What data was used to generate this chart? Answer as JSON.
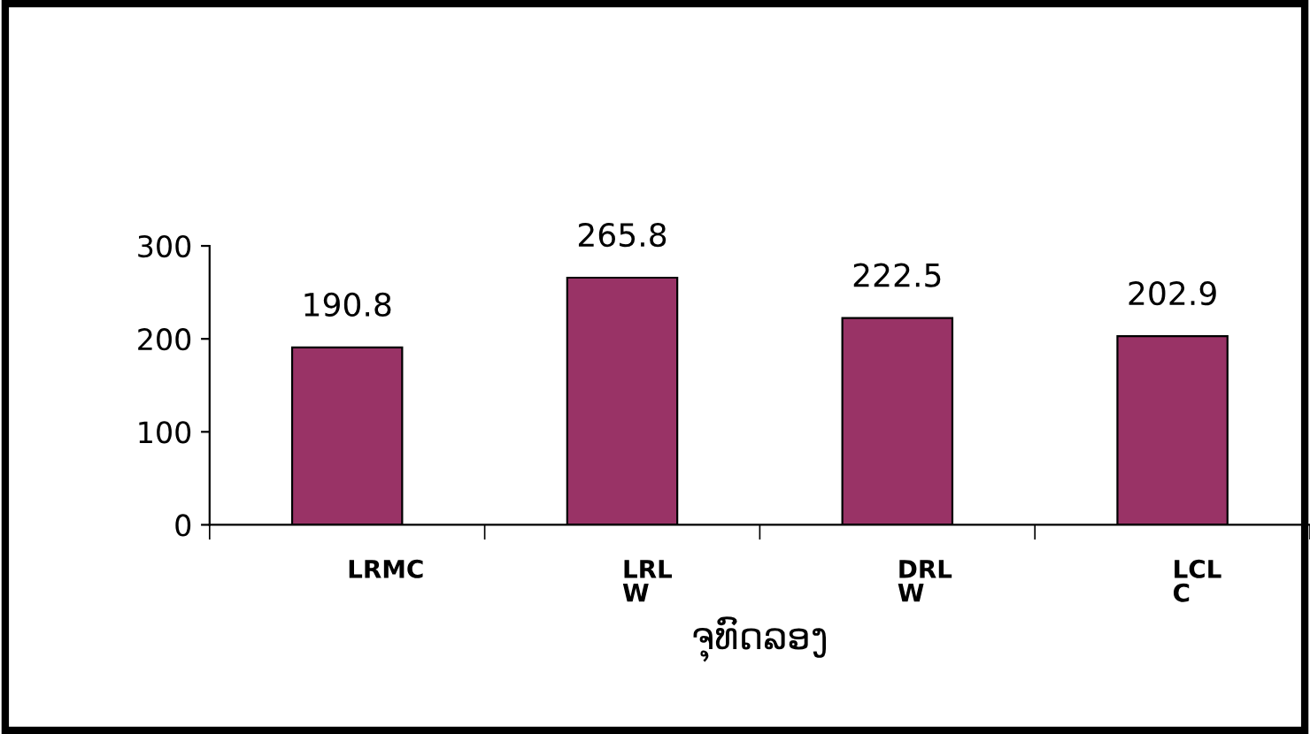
{
  "chart_data": {
    "type": "bar",
    "xlabel": "ຈຸທົດລອງ",
    "categories": [
      "LRMC",
      "LRL\nW",
      "DRL\nW",
      "LCL\nC"
    ],
    "values": [
      190.8,
      265.8,
      222.5,
      202.9
    ],
    "color": "#993366",
    "ylim": [
      0,
      300
    ],
    "yticks": [
      0,
      100,
      200,
      300
    ],
    "grid": false,
    "data_labels": true
  }
}
